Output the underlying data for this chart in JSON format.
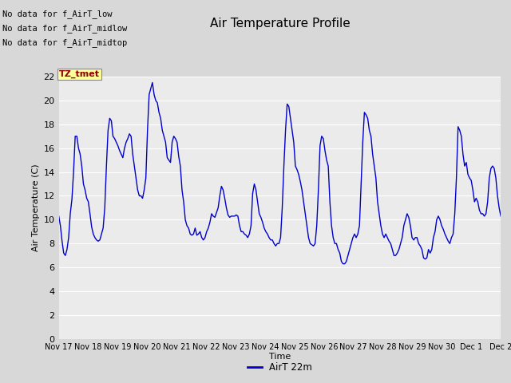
{
  "title": "Air Temperature Profile",
  "xlabel": "Time",
  "ylabel": "Air Temperature (C)",
  "legend_label": "AirT 22m",
  "line_color": "#0000cc",
  "fig_bg_color": "#d8d8d8",
  "plot_bg_color": "#ebebeb",
  "ylim": [
    0,
    22
  ],
  "yticks": [
    0,
    2,
    4,
    6,
    8,
    10,
    12,
    14,
    16,
    18,
    20,
    22
  ],
  "no_data_lines": [
    "No data for f_AirT_low",
    "No data for f_AirT_midlow",
    "No data for f_AirT_midtop"
  ],
  "tz_label": "TZ_tmet",
  "x_tick_labels": [
    "Nov 17",
    "Nov 18",
    "Nov 19",
    "Nov 20",
    "Nov 21",
    "Nov 22",
    "Nov 23",
    "Nov 24",
    "Nov 25",
    "Nov 26",
    "Nov 27",
    "Nov 28",
    "Nov 29",
    "Nov 30",
    "Dec 1",
    "Dec 2"
  ],
  "y_values": [
    10.3,
    9.5,
    8.2,
    7.2,
    7.0,
    7.5,
    8.5,
    10.5,
    11.7,
    14.0,
    17.0,
    17.0,
    16.0,
    15.5,
    14.5,
    13.0,
    12.5,
    11.8,
    11.5,
    10.5,
    9.4,
    8.8,
    8.5,
    8.3,
    8.2,
    8.3,
    8.8,
    9.3,
    11.0,
    14.5,
    17.5,
    18.5,
    18.3,
    17.0,
    16.8,
    16.5,
    16.2,
    15.8,
    15.5,
    15.2,
    16.0,
    16.5,
    16.8,
    17.2,
    17.0,
    15.5,
    14.5,
    13.5,
    12.5,
    12.0,
    12.0,
    11.8,
    12.5,
    13.5,
    17.5,
    20.5,
    21.0,
    21.5,
    20.5,
    20.0,
    19.8,
    19.0,
    18.5,
    17.5,
    17.0,
    16.5,
    15.2,
    15.0,
    14.8,
    16.5,
    17.0,
    16.8,
    16.5,
    15.3,
    14.5,
    12.5,
    11.5,
    10.0,
    9.5,
    9.3,
    8.8,
    8.7,
    8.8,
    9.3,
    8.7,
    8.8,
    9.0,
    8.5,
    8.3,
    8.5,
    9.0,
    9.3,
    9.8,
    10.5,
    10.3,
    10.2,
    10.6,
    11.0,
    12.0,
    12.8,
    12.5,
    11.8,
    11.0,
    10.4,
    10.2,
    10.3,
    10.3,
    10.3,
    10.4,
    10.3,
    9.5,
    9.0,
    9.0,
    8.8,
    8.7,
    8.5,
    8.8,
    9.5,
    12.2,
    13.0,
    12.5,
    11.5,
    10.5,
    10.2,
    9.8,
    9.3,
    9.0,
    8.8,
    8.5,
    8.3,
    8.3,
    8.0,
    7.8,
    8.0,
    8.0,
    8.5,
    11.0,
    14.5,
    17.5,
    19.7,
    19.5,
    18.5,
    17.5,
    16.5,
    14.5,
    14.2,
    13.8,
    13.2,
    12.5,
    11.5,
    10.5,
    9.5,
    8.5,
    8.0,
    7.9,
    7.8,
    8.0,
    9.5,
    12.5,
    16.2,
    17.0,
    16.8,
    15.8,
    15.0,
    14.5,
    11.5,
    9.5,
    8.5,
    8.0,
    8.0,
    7.5,
    7.2,
    6.5,
    6.3,
    6.3,
    6.5,
    7.0,
    7.5,
    8.0,
    8.5,
    8.8,
    8.5,
    8.8,
    9.5,
    13.0,
    16.5,
    19.0,
    18.8,
    18.5,
    17.5,
    17.0,
    15.5,
    14.5,
    13.5,
    11.5,
    10.5,
    9.5,
    8.8,
    8.5,
    8.8,
    8.5,
    8.2,
    8.0,
    7.5,
    7.0,
    7.0,
    7.2,
    7.5,
    8.0,
    8.5,
    9.5,
    10.0,
    10.5,
    10.2,
    9.5,
    8.5,
    8.3,
    8.5,
    8.5,
    8.0,
    7.8,
    7.5,
    6.8,
    6.7,
    6.8,
    7.5,
    7.2,
    7.5,
    8.5,
    9.0,
    10.0,
    10.3,
    10.0,
    9.5,
    9.2,
    8.8,
    8.5,
    8.2,
    8.0,
    8.5,
    8.8,
    10.5,
    13.5,
    17.8,
    17.5,
    17.0,
    15.5,
    14.5,
    14.8,
    13.8,
    13.5,
    13.3,
    12.5,
    11.5,
    11.8,
    11.5,
    10.8,
    10.5,
    10.5,
    10.3,
    10.5,
    11.5,
    13.5,
    14.3,
    14.5,
    14.3,
    13.5,
    12.0,
    11.0,
    10.3
  ]
}
